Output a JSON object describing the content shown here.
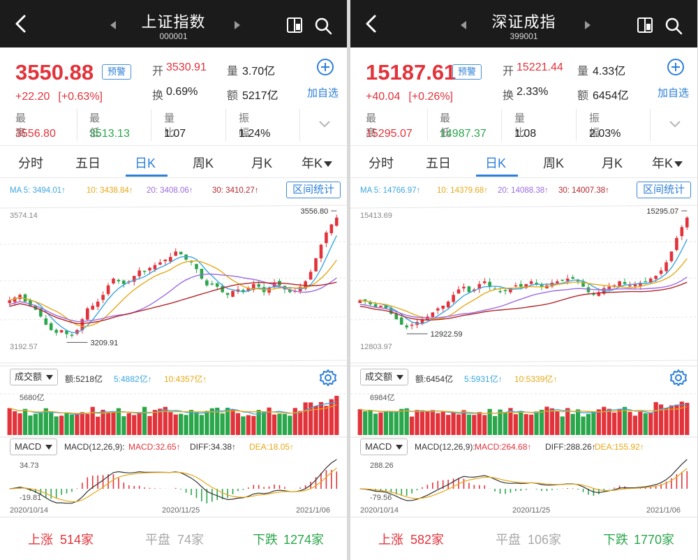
{
  "panels": [
    {
      "title": "上证指数",
      "code": "000001",
      "price": "3550.88",
      "alert_label": "预警",
      "change": "+22.20",
      "change_pct": "[+0.63%]",
      "open_label": "开",
      "open": "3530.91",
      "volume_label": "量",
      "volume": "3.70亿",
      "turnover_label": "换",
      "turnover": "0.69%",
      "amount_label": "额",
      "amount": "5217亿",
      "add_label": "加自选",
      "stats": [
        {
          "label": "最高",
          "value": "3556.80",
          "color": "red"
        },
        {
          "label": "最低",
          "value": "3513.13",
          "color": "green"
        },
        {
          "label": "量比",
          "value": "1.07",
          "color": "dark"
        },
        {
          "label": "振幅",
          "value": "1.24%",
          "color": "dark"
        }
      ],
      "tabs": [
        "分时",
        "五日",
        "日K",
        "周K",
        "月K",
        "年K"
      ],
      "active_tab": "日K",
      "ma": {
        "ma5": "MA 5: 3494.01↑",
        "ma10": "10: 3438.84↑",
        "ma20": "20: 3408.06↑",
        "ma30": "30: 3410.27↑"
      },
      "range_label": "区间统计",
      "axis_top": "3574.14",
      "axis_bottom": "3192.57",
      "high_marker": "3556.80",
      "low_marker": "3209.91",
      "vol_selector": "成交额",
      "vol_amount": "额:5218亿",
      "vol_ma5": "5:4882亿↑",
      "vol_ma10": "10:4357亿↑",
      "vol_axis": "5680亿",
      "macd_selector": "MACD",
      "macd_params": "MACD(12,26,9):",
      "macd_val": "MACD:32.65↑",
      "diff_val": "DIFF:34.38↑",
      "dea_val": "DEA:18.05↑",
      "macd_top": "34.73",
      "macd_bottom": "-19.81",
      "dates": [
        "2020/10/14",
        "2020/11/25",
        "2021/1/06"
      ],
      "rise_label": "上涨",
      "rise": "514家",
      "flat_label": "平盘",
      "flat": "74家",
      "fall_label": "下跌",
      "fall": "1274家"
    },
    {
      "title": "深证成指",
      "code": "399001",
      "price": "15187.61",
      "alert_label": "预警",
      "change": "+40.04",
      "change_pct": "[+0.26%]",
      "open_label": "开",
      "open": "15221.44",
      "volume_label": "量",
      "volume": "4.33亿",
      "turnover_label": "换",
      "turnover": "2.33%",
      "amount_label": "额",
      "amount": "6454亿",
      "add_label": "加自选",
      "stats": [
        {
          "label": "最高",
          "value": "15295.07",
          "color": "red"
        },
        {
          "label": "最低",
          "value": "14987.37",
          "color": "green"
        },
        {
          "label": "量比",
          "value": "1.08",
          "color": "dark"
        },
        {
          "label": "振幅",
          "value": "2.03%",
          "color": "dark"
        }
      ],
      "tabs": [
        "分时",
        "五日",
        "日K",
        "周K",
        "月K",
        "年K"
      ],
      "active_tab": "日K",
      "ma": {
        "ma5": "MA 5: 14766.97↑",
        "ma10": "10: 14379.68↑",
        "ma20": "20: 14088.38↑",
        "ma30": "30: 14007.38↑"
      },
      "range_label": "区间统计",
      "axis_top": "15413.69",
      "axis_bottom": "12803.97",
      "high_marker": "15295.07",
      "low_marker": "12922.59",
      "vol_selector": "成交额",
      "vol_amount": "额:6454亿",
      "vol_ma5": "5:5931亿↑",
      "vol_ma10": "10:5339亿↑",
      "vol_axis": "6984亿",
      "macd_selector": "MACD",
      "macd_params": "MACD(12,26,9):",
      "macd_val": "MACD:264.68↑",
      "diff_val": "DIFF:288.26↑",
      "dea_val": "DEA:155.92↑",
      "macd_top": "288.26",
      "macd_bottom": "-79.56",
      "dates": [
        "2020/10/14",
        "2020/11/25",
        "2021/1/06"
      ],
      "rise_label": "上涨",
      "rise": "582家",
      "flat_label": "平盘",
      "flat": "106家",
      "fall_label": "下跌",
      "fall": "1770家"
    }
  ],
  "colors": {
    "up": "#e2333b",
    "down": "#2aa64b",
    "accent": "#2d7fd6",
    "ma5": "#3aa6e0",
    "ma10": "#e6a817",
    "ma20": "#9b6be0",
    "ma30": "#b3262b"
  }
}
